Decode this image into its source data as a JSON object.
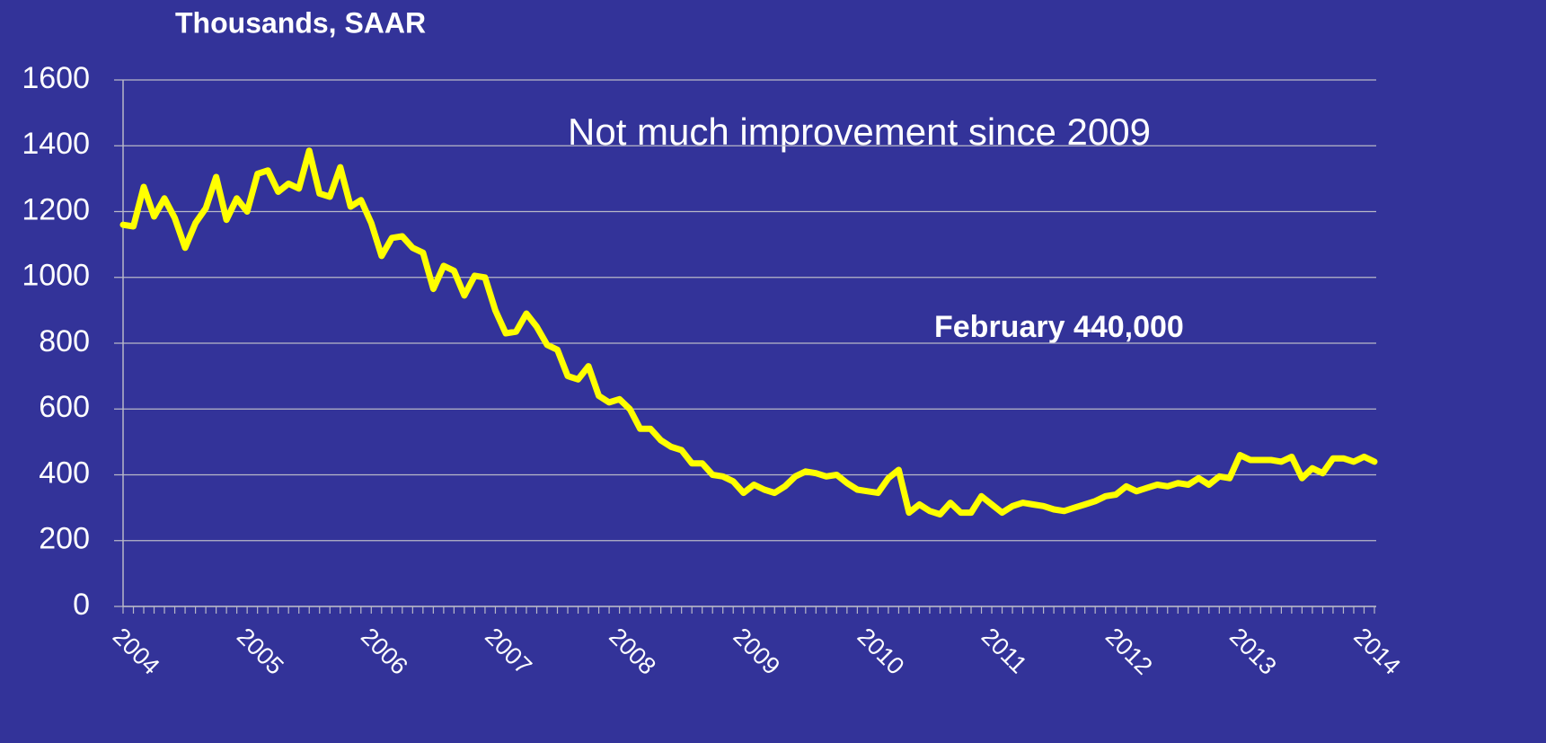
{
  "chart_data": {
    "type": "line",
    "title": "Thousands, SAAR",
    "annotations": [
      "Not much improvement  since 2009",
      "February  440,000"
    ],
    "categories": [
      "2004",
      null,
      null,
      null,
      null,
      null,
      null,
      null,
      null,
      null,
      null,
      null,
      "2005",
      null,
      null,
      null,
      null,
      null,
      null,
      null,
      null,
      null,
      null,
      null,
      "2006",
      null,
      null,
      null,
      null,
      null,
      null,
      null,
      null,
      null,
      null,
      null,
      "2007",
      null,
      null,
      null,
      null,
      null,
      null,
      null,
      null,
      null,
      null,
      null,
      "2008",
      null,
      null,
      null,
      null,
      null,
      null,
      null,
      null,
      null,
      null,
      null,
      "2009",
      null,
      null,
      null,
      null,
      null,
      null,
      null,
      null,
      null,
      null,
      null,
      "2010",
      null,
      null,
      null,
      null,
      null,
      null,
      null,
      null,
      null,
      null,
      null,
      "2011",
      null,
      null,
      null,
      null,
      null,
      null,
      null,
      null,
      null,
      null,
      null,
      "2012",
      null,
      null,
      null,
      null,
      null,
      null,
      null,
      null,
      null,
      null,
      null,
      "2013",
      null,
      null,
      null,
      null,
      null,
      null,
      null,
      null,
      null,
      null,
      null,
      "2014",
      null
    ],
    "values": [
      1160,
      1155,
      1275,
      1185,
      1240,
      1180,
      1090,
      1165,
      1210,
      1305,
      1175,
      1240,
      1200,
      1315,
      1325,
      1260,
      1285,
      1270,
      1385,
      1255,
      1245,
      1335,
      1215,
      1235,
      1165,
      1065,
      1120,
      1125,
      1090,
      1075,
      965,
      1035,
      1020,
      945,
      1005,
      1000,
      900,
      830,
      835,
      890,
      850,
      795,
      780,
      700,
      690,
      730,
      640,
      620,
      630,
      600,
      540,
      540,
      505,
      485,
      475,
      435,
      435,
      400,
      395,
      380,
      345,
      370,
      355,
      345,
      365,
      395,
      410,
      405,
      395,
      400,
      375,
      355,
      350,
      345,
      390,
      415,
      285,
      310,
      290,
      280,
      315,
      285,
      285,
      335,
      310,
      285,
      305,
      315,
      310,
      305,
      295,
      290,
      300,
      310,
      320,
      335,
      340,
      365,
      350,
      360,
      370,
      365,
      375,
      370,
      390,
      370,
      395,
      390,
      460,
      445,
      445,
      445,
      440,
      455,
      390,
      420,
      405,
      450,
      450,
      440,
      455,
      440
    ],
    "color": "#ffff00",
    "ylim": [
      0,
      1600
    ],
    "yticks": [
      0,
      200,
      400,
      600,
      800,
      1000,
      1200,
      1400,
      1600
    ],
    "grid": true
  }
}
